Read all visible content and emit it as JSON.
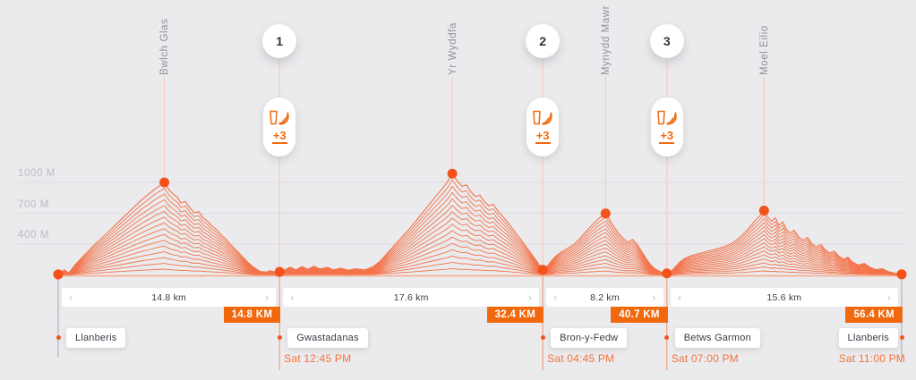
{
  "colors": {
    "background": "#ebeaec",
    "accent": "#f1690f",
    "profile_line": "#f3744b",
    "dot": "#f4521c",
    "grid": "#dcdbe0",
    "axis_label": "#b9bdc6",
    "peak_label": "#8f929c",
    "text_dark": "#3a3c46",
    "time_text": "#f2743f",
    "connector_pale": "#f6c9b5",
    "connector_below": "#f4926b",
    "endpoint_line": "#a6a6ae",
    "baseline": "#f5a88a"
  },
  "y_axis": {
    "labels": [
      {
        "text": "1000 M",
        "elevation_m": 1000
      },
      {
        "text": "700 M",
        "elevation_m": 700
      },
      {
        "text": "400 M",
        "elevation_m": 400
      }
    ]
  },
  "segments": [
    {
      "label": "14.8 km",
      "from_km": 0,
      "to_km": 14.8
    },
    {
      "label": "17.6 km",
      "from_km": 14.8,
      "to_km": 32.4
    },
    {
      "label": "8.2 km",
      "from_km": 32.4,
      "to_km": 40.7
    },
    {
      "label": "15.6 km",
      "from_km": 40.7,
      "to_km": 56.4
    }
  ],
  "checkpoints": [
    {
      "number": "1",
      "km": 14.8,
      "badge": "14.8 KM",
      "aid_count": "+3"
    },
    {
      "number": "2",
      "km": 32.4,
      "badge": "32.4 KM",
      "aid_count": "+3"
    },
    {
      "number": "3",
      "km": 40.7,
      "badge": "40.7 KM",
      "aid_count": "+3"
    }
  ],
  "finish_badge": {
    "km": 56.4,
    "badge": "56.4 KM"
  },
  "stations": [
    {
      "name": "Llanberis",
      "km": 0,
      "time": "",
      "align": "left"
    },
    {
      "name": "Gwastadanas",
      "km": 14.8,
      "time": "Sat 12:45 PM",
      "align": "left"
    },
    {
      "name": "Bron-y-Fedw",
      "km": 32.4,
      "time": "Sat 04:45 PM",
      "align": "left"
    },
    {
      "name": "Betws Garmon",
      "km": 40.7,
      "time": "Sat 07:00 PM",
      "align": "left"
    },
    {
      "name": "Llanberis",
      "km": 56.4,
      "time": "Sat 11:00 PM",
      "align": "right"
    }
  ],
  "chart_data": {
    "type": "area",
    "style": "ridgeline-contours",
    "ridge_lines": 16,
    "x_unit": "km",
    "y_unit": "m",
    "x_range_km": [
      0,
      56.4
    ],
    "y_gridlines_m": [
      1000,
      700,
      400
    ],
    "baseline_elevation_m": 100,
    "peaks": [
      {
        "name": "Bwlch Glas",
        "km": 7.1,
        "elevation_m": 1000
      },
      {
        "name": "Yr Wyddfa",
        "km": 26.35,
        "elevation_m": 1085
      },
      {
        "name": "Mynydd Mawr",
        "km": 36.6,
        "elevation_m": 698
      },
      {
        "name": "Moel Eilio",
        "km": 47.2,
        "elevation_m": 726
      }
    ],
    "waypoint_dots_km": [
      0,
      14.8,
      32.4,
      40.7,
      56.4
    ],
    "profile": [
      [
        0,
        105
      ],
      [
        0.4,
        150
      ],
      [
        0.7,
        120
      ],
      [
        1.2,
        210
      ],
      [
        1.8,
        300
      ],
      [
        2.4,
        390
      ],
      [
        3.0,
        470
      ],
      [
        3.5,
        540
      ],
      [
        4.0,
        610
      ],
      [
        4.5,
        680
      ],
      [
        5.0,
        750
      ],
      [
        5.5,
        820
      ],
      [
        6.0,
        880
      ],
      [
        6.5,
        940
      ],
      [
        7.1,
        1000
      ],
      [
        7.4,
        930
      ],
      [
        7.7,
        885
      ],
      [
        8.0,
        850
      ],
      [
        8.2,
        800
      ],
      [
        8.5,
        815
      ],
      [
        8.8,
        750
      ],
      [
        9.1,
        705
      ],
      [
        9.4,
        715
      ],
      [
        9.7,
        655
      ],
      [
        10.0,
        620
      ],
      [
        10.3,
        575
      ],
      [
        10.6,
        540
      ],
      [
        10.9,
        490
      ],
      [
        11.2,
        450
      ],
      [
        11.5,
        400
      ],
      [
        11.9,
        340
      ],
      [
        12.3,
        280
      ],
      [
        12.7,
        220
      ],
      [
        13.1,
        170
      ],
      [
        13.5,
        135
      ],
      [
        13.9,
        128
      ],
      [
        14.2,
        142
      ],
      [
        14.5,
        126
      ],
      [
        14.8,
        130
      ],
      [
        15.1,
        145
      ],
      [
        15.5,
        175
      ],
      [
        15.9,
        150
      ],
      [
        16.3,
        182
      ],
      [
        16.7,
        155
      ],
      [
        17.1,
        185
      ],
      [
        17.5,
        158
      ],
      [
        18.0,
        175
      ],
      [
        18.4,
        150
      ],
      [
        18.9,
        165
      ],
      [
        19.4,
        146
      ],
      [
        19.9,
        160
      ],
      [
        20.5,
        150
      ],
      [
        21.0,
        175
      ],
      [
        21.5,
        230
      ],
      [
        22.0,
        310
      ],
      [
        22.5,
        390
      ],
      [
        23.0,
        470
      ],
      [
        23.5,
        550
      ],
      [
        24.0,
        640
      ],
      [
        24.5,
        730
      ],
      [
        25.0,
        820
      ],
      [
        25.4,
        890
      ],
      [
        25.8,
        960
      ],
      [
        26.1,
        1020
      ],
      [
        26.35,
        1085
      ],
      [
        26.7,
        1010
      ],
      [
        27.0,
        962
      ],
      [
        27.3,
        976
      ],
      [
        27.6,
        906
      ],
      [
        27.9,
        862
      ],
      [
        28.2,
        876
      ],
      [
        28.5,
        812
      ],
      [
        28.8,
        772
      ],
      [
        29.1,
        786
      ],
      [
        29.4,
        722
      ],
      [
        29.7,
        672
      ],
      [
        30.0,
        622
      ],
      [
        30.4,
        546
      ],
      [
        30.8,
        470
      ],
      [
        31.2,
        392
      ],
      [
        31.6,
        312
      ],
      [
        32.0,
        232
      ],
      [
        32.3,
        168
      ],
      [
        32.4,
        150
      ],
      [
        32.7,
        185
      ],
      [
        33.0,
        240
      ],
      [
        33.3,
        285
      ],
      [
        33.6,
        320
      ],
      [
        33.9,
        345
      ],
      [
        34.2,
        370
      ],
      [
        34.5,
        400
      ],
      [
        34.8,
        440
      ],
      [
        35.1,
        490
      ],
      [
        35.4,
        540
      ],
      [
        35.7,
        585
      ],
      [
        36.0,
        630
      ],
      [
        36.3,
        665
      ],
      [
        36.6,
        698
      ],
      [
        36.9,
        630
      ],
      [
        37.2,
        560
      ],
      [
        37.5,
        500
      ],
      [
        37.8,
        452
      ],
      [
        38.1,
        416
      ],
      [
        38.4,
        446
      ],
      [
        38.7,
        400
      ],
      [
        39.0,
        330
      ],
      [
        39.3,
        262
      ],
      [
        39.6,
        200
      ],
      [
        39.9,
        160
      ],
      [
        40.3,
        130
      ],
      [
        40.7,
        115
      ],
      [
        41.0,
        135
      ],
      [
        41.3,
        185
      ],
      [
        41.6,
        230
      ],
      [
        41.9,
        260
      ],
      [
        42.2,
        280
      ],
      [
        42.5,
        295
      ],
      [
        42.9,
        310
      ],
      [
        43.3,
        325
      ],
      [
        43.7,
        340
      ],
      [
        44.1,
        355
      ],
      [
        44.5,
        372
      ],
      [
        44.9,
        396
      ],
      [
        45.3,
        432
      ],
      [
        45.7,
        482
      ],
      [
        46.1,
        542
      ],
      [
        46.5,
        612
      ],
      [
        46.9,
        672
      ],
      [
        47.2,
        726
      ],
      [
        47.45,
        662
      ],
      [
        47.7,
        622
      ],
      [
        47.95,
        656
      ],
      [
        48.2,
        582
      ],
      [
        48.45,
        616
      ],
      [
        48.7,
        542
      ],
      [
        48.95,
        506
      ],
      [
        49.2,
        536
      ],
      [
        49.5,
        472
      ],
      [
        49.8,
        436
      ],
      [
        50.1,
        466
      ],
      [
        50.4,
        402
      ],
      [
        50.7,
        372
      ],
      [
        51.0,
        396
      ],
      [
        51.3,
        342
      ],
      [
        51.6,
        312
      ],
      [
        51.9,
        332
      ],
      [
        52.2,
        282
      ],
      [
        52.5,
        252
      ],
      [
        52.8,
        272
      ],
      [
        53.1,
        226
      ],
      [
        53.5,
        196
      ],
      [
        53.9,
        212
      ],
      [
        54.3,
        172
      ],
      [
        54.7,
        152
      ],
      [
        55.1,
        162
      ],
      [
        55.5,
        132
      ],
      [
        55.9,
        118
      ],
      [
        56.4,
        106
      ]
    ]
  }
}
